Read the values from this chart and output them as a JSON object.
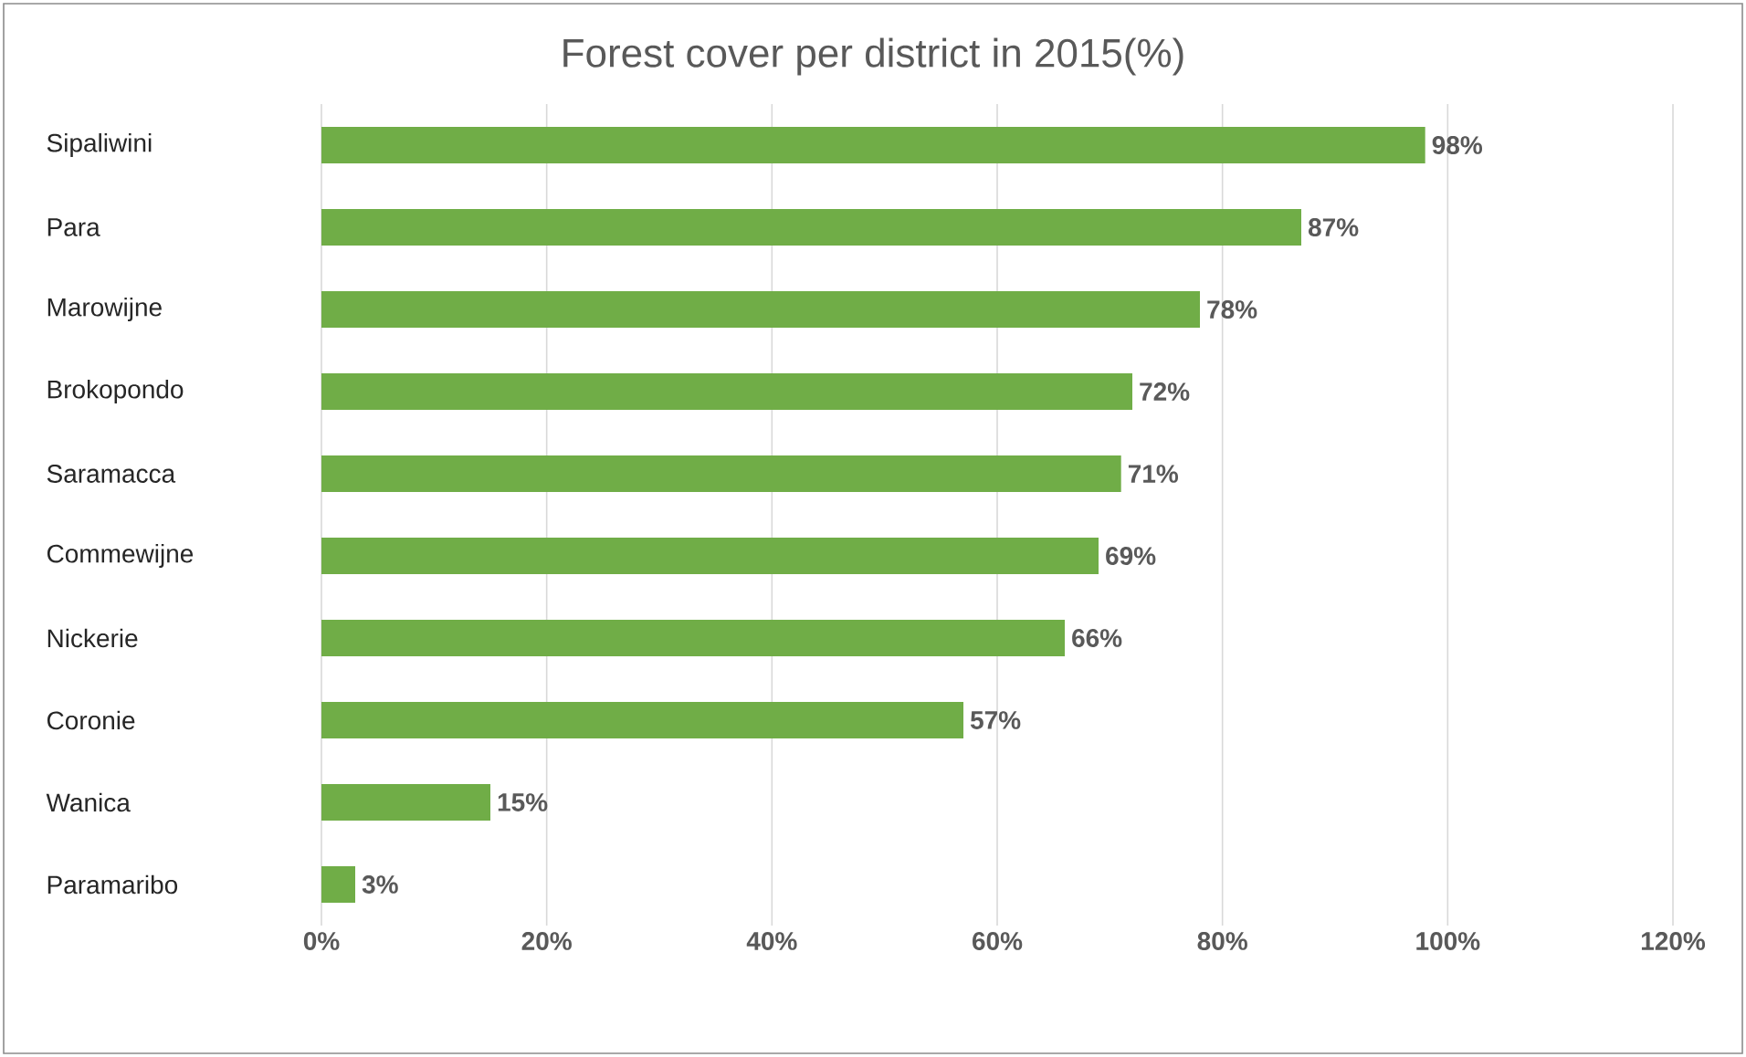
{
  "chart_data": {
    "type": "bar",
    "orientation": "horizontal",
    "title": "Forest cover per district in 2015(%)",
    "categories": [
      "Sipaliwini",
      "Para",
      "Marowijne",
      "Brokopondo",
      "Saramacca",
      "Commewijne",
      "Nickerie",
      "Coronie",
      "Wanica",
      "Paramaribo"
    ],
    "values": [
      98,
      87,
      78,
      72,
      71,
      69,
      66,
      57,
      15,
      3
    ],
    "value_labels": [
      "98%",
      "87%",
      "78%",
      "72%",
      "71%",
      "69%",
      "66%",
      "57%",
      "15%",
      "3%"
    ],
    "color": "#70ad47",
    "xlim": [
      0,
      120
    ],
    "xticks": [
      {
        "value": 0,
        "label": "0%"
      },
      {
        "value": 20,
        "label": "20%"
      },
      {
        "value": 40,
        "label": "40%"
      },
      {
        "value": 60,
        "label": "60%"
      },
      {
        "value": 80,
        "label": "80%"
      },
      {
        "value": 100,
        "label": "100%"
      },
      {
        "value": 120,
        "label": "120%"
      }
    ],
    "grid": "x"
  }
}
